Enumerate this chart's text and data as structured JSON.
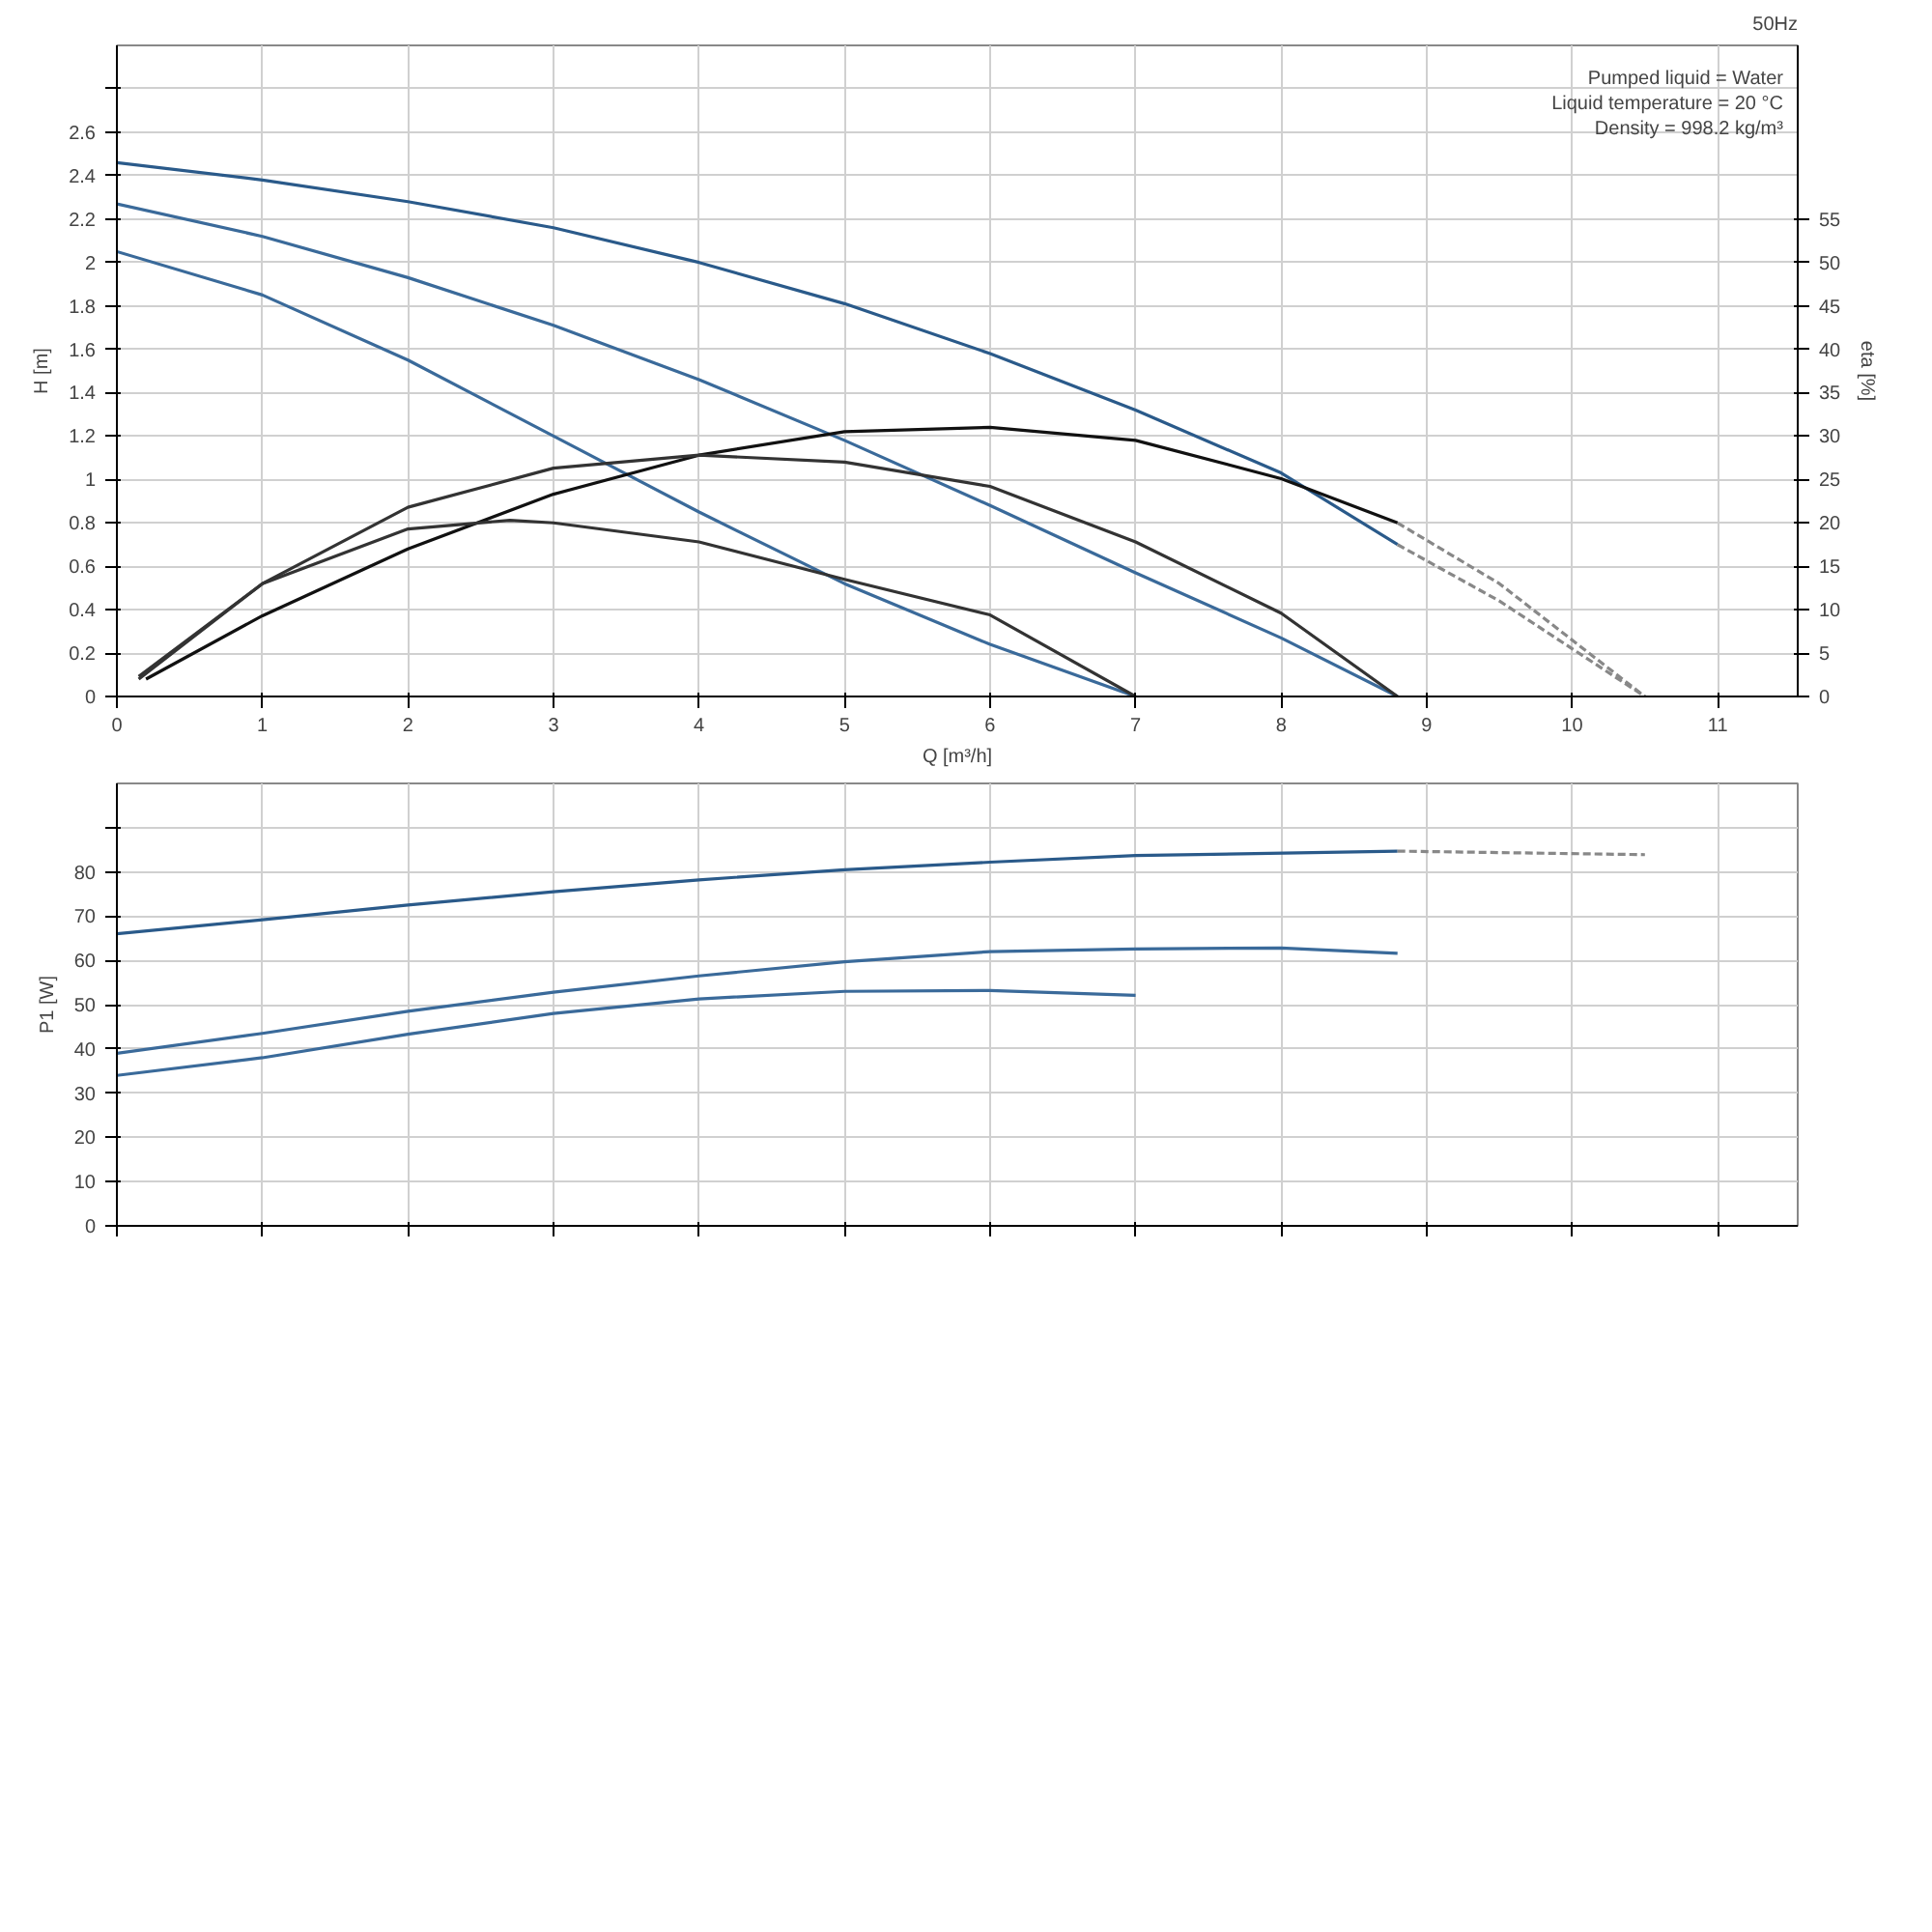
{
  "chart_data": [
    {
      "type": "line",
      "title": "50Hz",
      "ylabel": "H [m]",
      "y2label": "eta [%]",
      "xlabel": "Q [m³/h]",
      "xlim": [
        0,
        11.55
      ],
      "xticks": [
        0,
        1,
        2,
        3,
        4,
        5,
        6,
        7,
        8,
        9,
        10,
        11
      ],
      "ylim": [
        0,
        3.0
      ],
      "yticks": [
        0,
        0.2,
        0.4,
        0.6,
        0.8,
        1.0,
        1.2,
        1.4,
        1.6,
        1.8,
        2.0,
        2.2,
        2.4,
        2.6,
        {
          "value": 2.8,
          "label": null
        }
      ],
      "y2lim": [
        0,
        75
      ],
      "y2ticks": [
        0,
        5,
        10,
        15,
        20,
        25,
        30,
        35,
        40,
        45,
        50,
        55
      ],
      "grid": true,
      "annotations": [
        "Pumped liquid = Water",
        "Liquid temperature = 20 °C",
        "Density = 998.2 kg/m³"
      ],
      "series": [
        {
          "color": "#2a5a8a",
          "x": [
            0,
            1,
            2,
            3,
            4,
            5,
            6,
            7,
            8,
            8.8
          ],
          "values": [
            2.46,
            2.38,
            2.28,
            2.16,
            2.0,
            1.81,
            1.58,
            1.32,
            1.03,
            0.7
          ]
        },
        {
          "color": "#3a6a9a",
          "x": [
            0,
            1,
            2,
            3,
            4,
            5,
            6,
            7,
            8,
            8.8
          ],
          "values": [
            2.27,
            2.12,
            1.93,
            1.71,
            1.46,
            1.18,
            0.88,
            0.57,
            0.27,
            0
          ]
        },
        {
          "color": "#3a6a9a",
          "x": [
            0,
            1,
            2,
            3,
            4,
            5,
            6,
            7
          ],
          "values": [
            2.05,
            1.85,
            1.55,
            1.2,
            0.85,
            0.52,
            0.24,
            0
          ]
        },
        {
          "color": "#888888",
          "line_style": "dashed",
          "x": [
            8.8,
            9.5,
            10.5
          ],
          "values": [
            0.7,
            0.44,
            0
          ]
        },
        {
          "color": "#111111",
          "axis": "y2",
          "x": [
            0.2,
            1,
            2,
            3,
            4,
            5,
            6,
            7,
            8,
            8.8
          ],
          "values": [
            2,
            9.3,
            17,
            23.3,
            27.8,
            30.5,
            31,
            29.5,
            25.1,
            20
          ]
        },
        {
          "color": "#333333",
          "axis": "y2",
          "x": [
            0.15,
            1,
            2,
            3,
            4,
            5,
            6,
            7,
            8,
            8.8
          ],
          "values": [
            2.3,
            13,
            21.8,
            26.3,
            27.8,
            27,
            24.2,
            17.8,
            9.6,
            0
          ]
        },
        {
          "color": "#333333",
          "axis": "y2",
          "x": [
            0.15,
            1,
            2,
            2.7,
            3,
            4,
            5,
            6,
            7
          ],
          "values": [
            2,
            13,
            19.3,
            20.3,
            20,
            17.8,
            13.5,
            9.4,
            0
          ]
        },
        {
          "color": "#888888",
          "line_style": "dashed",
          "axis": "y2",
          "x": [
            8.8,
            9.5,
            10.5
          ],
          "values": [
            20,
            13,
            0
          ]
        }
      ]
    },
    {
      "type": "line",
      "ylabel": "P1 [W]",
      "tick_labels": "y",
      "xlim": [
        0,
        11.55
      ],
      "xticks": [
        0,
        1,
        2,
        3,
        4,
        5,
        6,
        7,
        8,
        9,
        10,
        11
      ],
      "ylim": [
        0,
        100
      ],
      "yticks": [
        0,
        10,
        20,
        30,
        40,
        50,
        60,
        70,
        80,
        {
          "value": 90,
          "label": null
        }
      ],
      "grid": true,
      "series": [
        {
          "color": "#2a5a8a",
          "x": [
            0,
            1,
            2,
            3,
            4,
            5,
            6,
            7,
            8.8
          ],
          "values": [
            66,
            69.2,
            72.5,
            75.5,
            78.2,
            80.5,
            82.2,
            83.7,
            84.7
          ]
        },
        {
          "color": "#3a6a9a",
          "x": [
            0,
            1,
            2,
            3,
            4,
            5,
            6,
            7,
            8,
            8.8
          ],
          "values": [
            39,
            43.5,
            48.5,
            52.8,
            56.5,
            59.7,
            62,
            62.6,
            62.8,
            61.6
          ]
        },
        {
          "color": "#3a6a9a",
          "x": [
            0,
            1,
            2,
            3,
            4,
            5,
            6,
            7
          ],
          "values": [
            34,
            38,
            43.3,
            48,
            51.3,
            53,
            53.2,
            52.1
          ]
        },
        {
          "color": "#888888",
          "line_style": "dashed",
          "x": [
            8.8,
            10.5
          ],
          "values": [
            84.7,
            83.9
          ]
        }
      ]
    }
  ]
}
